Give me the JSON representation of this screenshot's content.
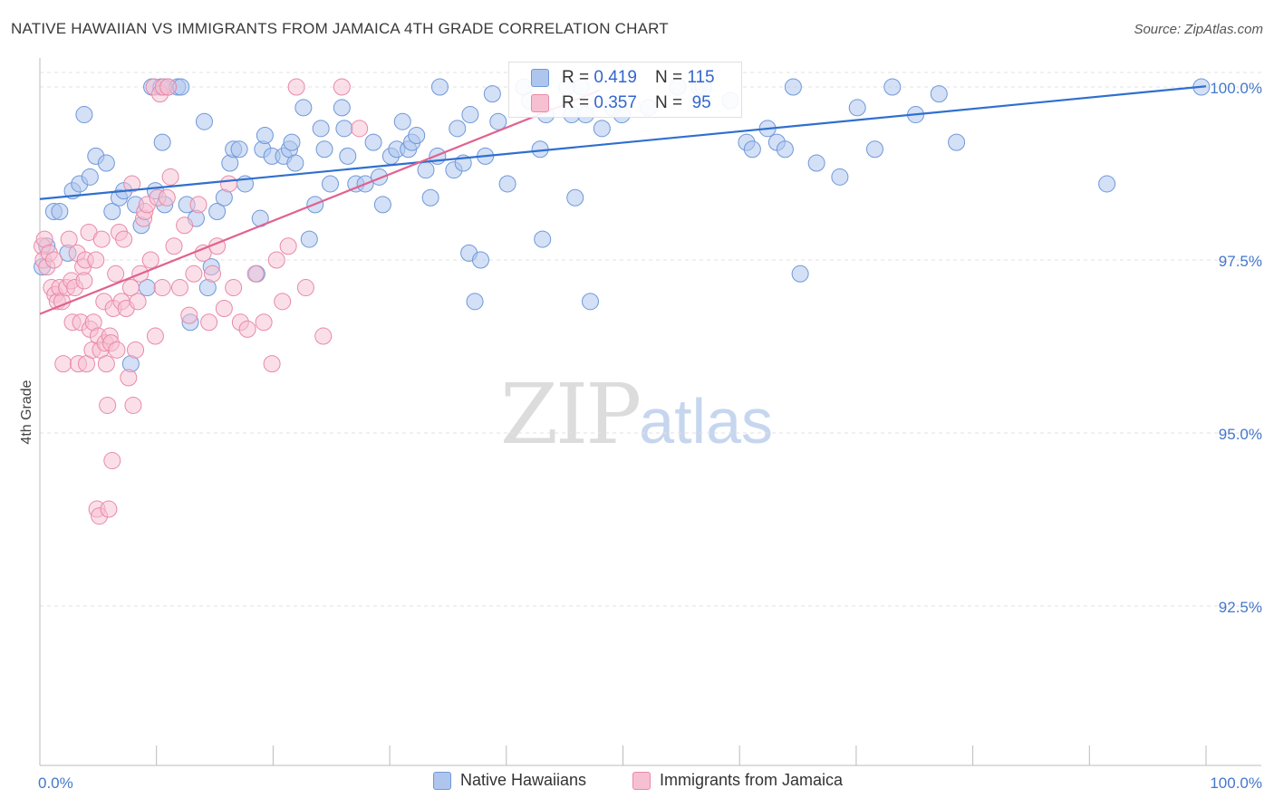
{
  "header": {
    "title": "NATIVE HAWAIIAN VS IMMIGRANTS FROM JAMAICA 4TH GRADE CORRELATION CHART",
    "source": "Source: ZipAtlas.com"
  },
  "watermark": {
    "zip": "ZIP",
    "atlas": "atlas"
  },
  "legend_top": {
    "rows": [
      {
        "r_label": "R =",
        "r_value": "0.419",
        "n_label": "N =",
        "n_value": "115"
      },
      {
        "r_label": "R =",
        "r_value": "0.357",
        "n_label": "N =",
        "n_value": "95"
      }
    ]
  },
  "legend_bottom": {
    "items": [
      {
        "label": "Native Hawaiians"
      },
      {
        "label": "Immigrants from Jamaica"
      }
    ]
  },
  "colors": {
    "blue_fill": "#aec6ee",
    "blue_stroke": "#6f98d8",
    "blue_line": "#2f6fcf",
    "pink_fill": "#f7c0d2",
    "pink_stroke": "#e88aa8",
    "pink_line": "#e0628f",
    "grid": "#e2e2e2",
    "tick_label": "#4477cc"
  },
  "chart_data": {
    "type": "scatter",
    "title": "NATIVE HAWAIIAN VS IMMIGRANTS FROM JAMAICA 4TH GRADE CORRELATION CHART",
    "xlabel": "",
    "ylabel": "4th Grade",
    "xlim": [
      0,
      100
    ],
    "ylim": [
      90.4,
      100.3
    ],
    "x_tick_labels": [
      "0.0%",
      "100.0%"
    ],
    "y_ticks": [
      {
        "value": 100.0,
        "label": "100.0%"
      },
      {
        "value": 97.5,
        "label": "97.5%"
      },
      {
        "value": 95.0,
        "label": "95.0%"
      },
      {
        "value": 92.5,
        "label": "92.5%"
      }
    ],
    "grid": true,
    "legend_position": "top-center",
    "series": [
      {
        "name": "Native Hawaiians",
        "R": 0.419,
        "N": 115,
        "trend": [
          [
            0,
            98.38
          ],
          [
            100,
            100.01
          ]
        ],
        "points": [
          [
            0.2,
            97.4
          ],
          [
            0.6,
            97.7
          ],
          [
            1.2,
            98.2
          ],
          [
            1.7,
            98.2
          ],
          [
            2.4,
            97.6
          ],
          [
            2.8,
            98.5
          ],
          [
            3.4,
            98.6
          ],
          [
            3.8,
            99.6
          ],
          [
            4.3,
            98.7
          ],
          [
            4.8,
            99.0
          ],
          [
            5.7,
            98.9
          ],
          [
            6.2,
            98.2
          ],
          [
            6.8,
            98.4
          ],
          [
            7.2,
            98.5
          ],
          [
            7.8,
            96.0
          ],
          [
            8.2,
            98.3
          ],
          [
            8.7,
            98.0
          ],
          [
            9.2,
            97.1
          ],
          [
            9.6,
            100.0
          ],
          [
            9.9,
            98.5
          ],
          [
            10.4,
            100.0
          ],
          [
            10.5,
            99.2
          ],
          [
            10.7,
            98.3
          ],
          [
            11.0,
            100.0
          ],
          [
            11.8,
            100.0
          ],
          [
            12.1,
            100.0
          ],
          [
            12.6,
            98.3
          ],
          [
            12.9,
            96.6
          ],
          [
            13.4,
            98.1
          ],
          [
            14.1,
            99.5
          ],
          [
            14.4,
            97.1
          ],
          [
            14.7,
            97.4
          ],
          [
            15.2,
            98.2
          ],
          [
            15.8,
            98.4
          ],
          [
            16.3,
            98.9
          ],
          [
            16.6,
            99.1
          ],
          [
            17.1,
            99.1
          ],
          [
            17.6,
            98.6
          ],
          [
            18.6,
            97.3
          ],
          [
            18.9,
            98.1
          ],
          [
            19.1,
            99.1
          ],
          [
            19.3,
            99.3
          ],
          [
            19.9,
            99.0
          ],
          [
            20.9,
            99.0
          ],
          [
            21.4,
            99.1
          ],
          [
            21.6,
            99.2
          ],
          [
            21.9,
            98.9
          ],
          [
            22.6,
            99.7
          ],
          [
            23.1,
            97.8
          ],
          [
            23.6,
            98.3
          ],
          [
            24.1,
            99.4
          ],
          [
            24.4,
            99.1
          ],
          [
            24.9,
            98.6
          ],
          [
            25.9,
            99.7
          ],
          [
            26.1,
            99.4
          ],
          [
            26.4,
            99.0
          ],
          [
            27.1,
            98.6
          ],
          [
            27.9,
            98.6
          ],
          [
            28.6,
            99.2
          ],
          [
            29.1,
            98.7
          ],
          [
            29.4,
            98.3
          ],
          [
            30.1,
            99.0
          ],
          [
            30.6,
            99.1
          ],
          [
            31.1,
            99.5
          ],
          [
            31.6,
            99.1
          ],
          [
            31.9,
            99.2
          ],
          [
            32.3,
            99.3
          ],
          [
            33.1,
            98.8
          ],
          [
            33.5,
            98.4
          ],
          [
            34.1,
            99.0
          ],
          [
            34.3,
            100.0
          ],
          [
            35.5,
            98.8
          ],
          [
            35.8,
            99.4
          ],
          [
            36.3,
            98.9
          ],
          [
            36.8,
            97.6
          ],
          [
            36.9,
            99.6
          ],
          [
            37.3,
            96.9
          ],
          [
            37.8,
            97.5
          ],
          [
            38.2,
            99.0
          ],
          [
            38.8,
            99.9
          ],
          [
            39.3,
            99.5
          ],
          [
            40.1,
            98.6
          ],
          [
            41.5,
            100.0
          ],
          [
            42.0,
            99.8
          ],
          [
            42.9,
            99.1
          ],
          [
            43.1,
            97.8
          ],
          [
            43.4,
            99.6
          ],
          [
            45.2,
            100.0
          ],
          [
            45.6,
            99.6
          ],
          [
            45.9,
            98.4
          ],
          [
            46.4,
            100.0
          ],
          [
            46.8,
            99.6
          ],
          [
            47.2,
            96.9
          ],
          [
            48.2,
            99.4
          ],
          [
            49.1,
            99.7
          ],
          [
            49.9,
            99.6
          ],
          [
            52.2,
            99.7
          ],
          [
            54.7,
            100.0
          ],
          [
            56.5,
            100.0
          ],
          [
            56.9,
            100.0
          ],
          [
            59.2,
            99.8
          ],
          [
            60.6,
            99.2
          ],
          [
            61.1,
            99.1
          ],
          [
            62.4,
            99.4
          ],
          [
            63.2,
            99.2
          ],
          [
            63.9,
            99.1
          ],
          [
            64.6,
            100.0
          ],
          [
            65.2,
            97.3
          ],
          [
            66.6,
            98.9
          ],
          [
            68.6,
            98.7
          ],
          [
            70.1,
            99.7
          ],
          [
            71.6,
            99.1
          ],
          [
            73.1,
            100.0
          ],
          [
            75.1,
            99.6
          ],
          [
            77.1,
            99.9
          ],
          [
            78.6,
            99.2
          ],
          [
            91.5,
            98.6
          ],
          [
            99.6,
            100.0
          ]
        ]
      },
      {
        "name": "Immigrants from Jamaica",
        "R": 0.357,
        "N": 95,
        "trend": [
          [
            0,
            96.72
          ],
          [
            48,
            99.95
          ]
        ],
        "points": [
          [
            0.2,
            97.7
          ],
          [
            0.3,
            97.5
          ],
          [
            0.4,
            97.8
          ],
          [
            0.6,
            97.4
          ],
          [
            0.8,
            97.6
          ],
          [
            1.0,
            97.1
          ],
          [
            1.2,
            97.5
          ],
          [
            1.3,
            97.0
          ],
          [
            1.5,
            96.9
          ],
          [
            1.7,
            97.1
          ],
          [
            1.9,
            96.9
          ],
          [
            2.0,
            96.0
          ],
          [
            2.3,
            97.1
          ],
          [
            2.5,
            97.8
          ],
          [
            2.7,
            97.2
          ],
          [
            2.8,
            96.6
          ],
          [
            3.0,
            97.1
          ],
          [
            3.2,
            97.6
          ],
          [
            3.3,
            96.0
          ],
          [
            3.5,
            96.6
          ],
          [
            3.7,
            97.4
          ],
          [
            3.8,
            97.2
          ],
          [
            3.9,
            97.5
          ],
          [
            4.0,
            96.0
          ],
          [
            4.2,
            97.9
          ],
          [
            4.3,
            96.5
          ],
          [
            4.5,
            96.2
          ],
          [
            4.6,
            96.6
          ],
          [
            4.8,
            97.5
          ],
          [
            4.9,
            93.9
          ],
          [
            5.0,
            96.4
          ],
          [
            5.1,
            93.8
          ],
          [
            5.2,
            96.2
          ],
          [
            5.3,
            97.8
          ],
          [
            5.5,
            96.9
          ],
          [
            5.6,
            96.3
          ],
          [
            5.7,
            96.0
          ],
          [
            5.8,
            95.4
          ],
          [
            5.9,
            93.9
          ],
          [
            6.0,
            96.4
          ],
          [
            6.1,
            96.3
          ],
          [
            6.2,
            94.6
          ],
          [
            6.3,
            96.8
          ],
          [
            6.5,
            97.3
          ],
          [
            6.6,
            96.2
          ],
          [
            6.8,
            97.9
          ],
          [
            7.0,
            96.9
          ],
          [
            7.2,
            97.8
          ],
          [
            7.4,
            96.8
          ],
          [
            7.6,
            95.8
          ],
          [
            7.8,
            97.1
          ],
          [
            7.9,
            98.6
          ],
          [
            8.0,
            95.4
          ],
          [
            8.2,
            96.2
          ],
          [
            8.4,
            96.9
          ],
          [
            8.6,
            97.3
          ],
          [
            8.9,
            98.1
          ],
          [
            9.0,
            98.2
          ],
          [
            9.2,
            98.3
          ],
          [
            9.5,
            97.5
          ],
          [
            9.8,
            100.0
          ],
          [
            9.9,
            96.4
          ],
          [
            10.1,
            98.4
          ],
          [
            10.3,
            99.9
          ],
          [
            10.5,
            97.1
          ],
          [
            10.6,
            100.0
          ],
          [
            10.9,
            98.4
          ],
          [
            11.0,
            100.0
          ],
          [
            11.2,
            98.7
          ],
          [
            11.5,
            97.7
          ],
          [
            12.0,
            97.1
          ],
          [
            12.4,
            98.0
          ],
          [
            12.8,
            96.7
          ],
          [
            13.2,
            97.3
          ],
          [
            13.6,
            98.3
          ],
          [
            14.0,
            97.6
          ],
          [
            14.5,
            96.6
          ],
          [
            14.8,
            97.3
          ],
          [
            15.2,
            97.7
          ],
          [
            15.8,
            96.8
          ],
          [
            16.2,
            98.6
          ],
          [
            16.6,
            97.1
          ],
          [
            17.2,
            96.6
          ],
          [
            17.8,
            96.5
          ],
          [
            18.5,
            97.3
          ],
          [
            19.2,
            96.6
          ],
          [
            19.9,
            96.0
          ],
          [
            20.3,
            97.5
          ],
          [
            20.8,
            96.9
          ],
          [
            21.3,
            97.7
          ],
          [
            22.0,
            100.0
          ],
          [
            22.8,
            97.1
          ],
          [
            24.3,
            96.4
          ],
          [
            25.9,
            100.0
          ],
          [
            27.4,
            99.4
          ]
        ]
      }
    ]
  }
}
